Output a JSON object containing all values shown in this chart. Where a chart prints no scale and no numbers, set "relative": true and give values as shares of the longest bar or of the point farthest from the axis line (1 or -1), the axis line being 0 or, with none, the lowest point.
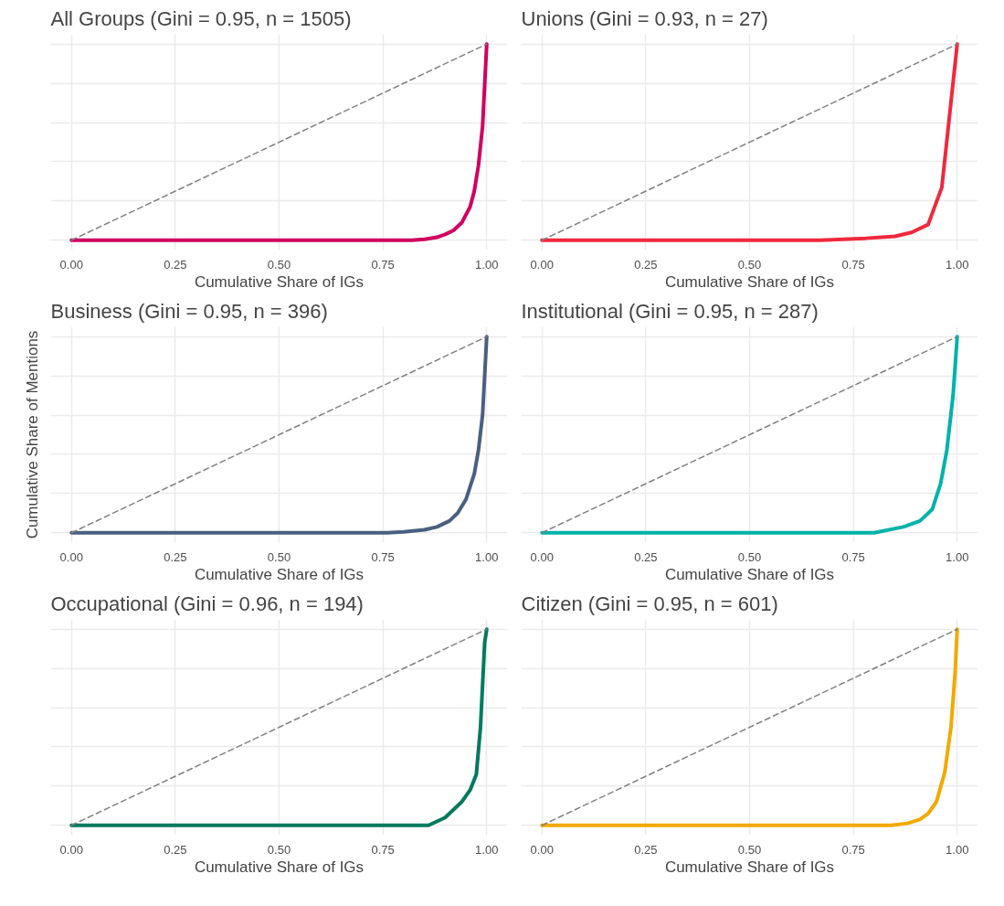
{
  "chart_data": [
    {
      "type": "line",
      "title": "All Groups (Gini = 0.95, n = 1505)",
      "xlabel": "Cumulative Share of IGs",
      "relative": true,
      "xlim": [
        -0.05,
        1.05
      ],
      "xticks": [
        {
          "value": 0,
          "label": "0.00"
        },
        {
          "value": 0.25,
          "label": "0.25"
        },
        {
          "value": 0.5,
          "label": "0.50"
        },
        {
          "value": 0.75,
          "label": "0.75"
        },
        {
          "value": 1,
          "label": "1.00"
        }
      ],
      "grid": true,
      "tick_labels": "x",
      "series": [
        {
          "color": "#d1005f",
          "x": [
            0,
            0.82,
            0.85,
            0.88,
            0.9,
            0.92,
            0.94,
            0.96,
            0.97,
            0.98,
            0.99,
            1.0
          ],
          "values": [
            0,
            0,
            0.005,
            0.015,
            0.03,
            0.05,
            0.09,
            0.17,
            0.25,
            0.38,
            0.58,
            1.0
          ]
        },
        {
          "color": "#808080",
          "line_style": "dashed",
          "x": [
            0,
            1
          ],
          "values": [
            0,
            1
          ]
        }
      ]
    },
    {
      "type": "line",
      "title": "Unions (Gini = 0.93, n = 27)",
      "xlabel": "Cumulative Share of IGs",
      "relative": true,
      "xlim": [
        -0.05,
        1.05
      ],
      "xticks": [
        {
          "value": 0,
          "label": "0.00"
        },
        {
          "value": 0.25,
          "label": "0.25"
        },
        {
          "value": 0.5,
          "label": "0.50"
        },
        {
          "value": 0.75,
          "label": "0.75"
        },
        {
          "value": 1,
          "label": "1.00"
        }
      ],
      "grid": true,
      "tick_labels": "x",
      "series": [
        {
          "color": "#f0283c",
          "x": [
            0,
            0.67,
            0.78,
            0.85,
            0.89,
            0.93,
            0.963,
            1.0
          ],
          "values": [
            0,
            0,
            0.01,
            0.02,
            0.04,
            0.08,
            0.27,
            1.0
          ]
        },
        {
          "color": "#808080",
          "line_style": "dashed",
          "x": [
            0,
            1
          ],
          "values": [
            0,
            1
          ]
        }
      ]
    },
    {
      "type": "line",
      "title": "Business (Gini = 0.95, n = 396)",
      "xlabel": "Cumulative Share of IGs",
      "ylabel": "Cumulative Share of Mentions",
      "relative": true,
      "xlim": [
        -0.05,
        1.05
      ],
      "xticks": [
        {
          "value": 0,
          "label": "0.00"
        },
        {
          "value": 0.25,
          "label": "0.25"
        },
        {
          "value": 0.5,
          "label": "0.50"
        },
        {
          "value": 0.75,
          "label": "0.75"
        },
        {
          "value": 1,
          "label": "1.00"
        }
      ],
      "grid": true,
      "tick_labels": "x",
      "series": [
        {
          "color": "#4a5f80",
          "x": [
            0,
            0.76,
            0.8,
            0.85,
            0.88,
            0.91,
            0.93,
            0.95,
            0.97,
            0.98,
            0.99,
            1.0
          ],
          "values": [
            0,
            0,
            0.005,
            0.015,
            0.03,
            0.06,
            0.1,
            0.17,
            0.3,
            0.42,
            0.6,
            1.0
          ]
        },
        {
          "color": "#808080",
          "line_style": "dashed",
          "x": [
            0,
            1
          ],
          "values": [
            0,
            1
          ]
        }
      ]
    },
    {
      "type": "line",
      "title": "Institutional (Gini = 0.95, n = 287)",
      "xlabel": "Cumulative Share of IGs",
      "relative": true,
      "xlim": [
        -0.05,
        1.05
      ],
      "xticks": [
        {
          "value": 0,
          "label": "0.00"
        },
        {
          "value": 0.25,
          "label": "0.25"
        },
        {
          "value": 0.5,
          "label": "0.50"
        },
        {
          "value": 0.75,
          "label": "0.75"
        },
        {
          "value": 1,
          "label": "1.00"
        }
      ],
      "grid": true,
      "tick_labels": "x",
      "series": [
        {
          "color": "#00b2a9",
          "x": [
            0,
            0.8,
            0.87,
            0.91,
            0.94,
            0.96,
            0.975,
            0.99,
            1.0
          ],
          "values": [
            0,
            0,
            0.03,
            0.06,
            0.12,
            0.25,
            0.42,
            0.7,
            1.0
          ]
        },
        {
          "color": "#808080",
          "line_style": "dashed",
          "x": [
            0,
            1
          ],
          "values": [
            0,
            1
          ]
        }
      ]
    },
    {
      "type": "line",
      "title": "Occupational (Gini = 0.96, n = 194)",
      "xlabel": "Cumulative Share of IGs",
      "relative": true,
      "xlim": [
        -0.05,
        1.05
      ],
      "xticks": [
        {
          "value": 0,
          "label": "0.00"
        },
        {
          "value": 0.25,
          "label": "0.25"
        },
        {
          "value": 0.5,
          "label": "0.50"
        },
        {
          "value": 0.75,
          "label": "0.75"
        },
        {
          "value": 1,
          "label": "1.00"
        }
      ],
      "grid": true,
      "tick_labels": "x",
      "series": [
        {
          "color": "#007a5e",
          "x": [
            0,
            0.86,
            0.9,
            0.94,
            0.96,
            0.975,
            0.985,
            0.995,
            1.0
          ],
          "values": [
            0,
            0,
            0.04,
            0.12,
            0.18,
            0.26,
            0.5,
            0.93,
            1.0
          ]
        },
        {
          "color": "#808080",
          "line_style": "dashed",
          "x": [
            0,
            1
          ],
          "values": [
            0,
            1
          ]
        }
      ]
    },
    {
      "type": "line",
      "title": "Citizen (Gini = 0.95, n = 601)",
      "xlabel": "Cumulative Share of IGs",
      "relative": true,
      "xlim": [
        -0.05,
        1.05
      ],
      "xticks": [
        {
          "value": 0,
          "label": "0.00"
        },
        {
          "value": 0.25,
          "label": "0.25"
        },
        {
          "value": 0.5,
          "label": "0.50"
        },
        {
          "value": 0.75,
          "label": "0.75"
        },
        {
          "value": 1,
          "label": "1.00"
        }
      ],
      "grid": true,
      "tick_labels": "x",
      "series": [
        {
          "color": "#f2a900",
          "x": [
            0,
            0.84,
            0.88,
            0.91,
            0.93,
            0.95,
            0.97,
            0.985,
            0.995,
            1.0
          ],
          "values": [
            0,
            0,
            0.01,
            0.03,
            0.06,
            0.12,
            0.27,
            0.5,
            0.78,
            1.0
          ]
        },
        {
          "color": "#808080",
          "line_style": "dashed",
          "x": [
            0,
            1
          ],
          "values": [
            0,
            1
          ]
        }
      ]
    }
  ]
}
